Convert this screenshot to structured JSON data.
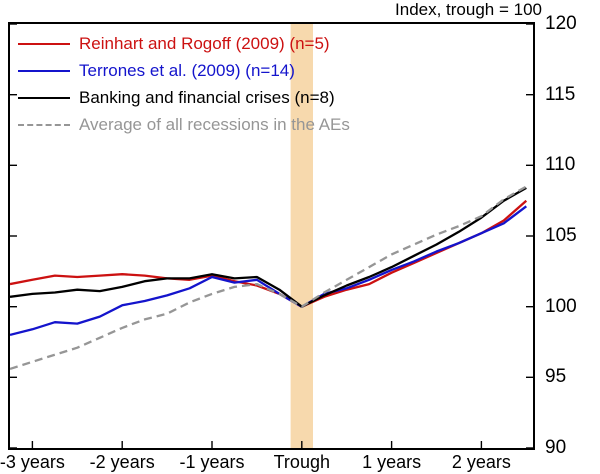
{
  "chart_data": {
    "type": "line",
    "title": "Index, trough = 100",
    "x_unit": "quarters relative to trough",
    "grid": false,
    "legend_position": "top-left",
    "xlim": [
      -13.0,
      10.3
    ],
    "ylim": [
      90,
      120
    ],
    "x": [
      -13,
      -12,
      -11,
      -10,
      -9,
      -8,
      -7,
      -6,
      -5,
      -4,
      -3,
      -2,
      -1,
      0,
      1,
      2,
      3,
      4,
      5,
      6,
      7,
      8,
      9,
      10
    ],
    "series": [
      {
        "name": "Reinhart and Rogoff (2009) (n=5)",
        "color": "#cc1111",
        "dash": "",
        "values": [
          101.6,
          101.9,
          102.2,
          102.1,
          102.2,
          102.3,
          102.2,
          102.0,
          101.9,
          102.2,
          101.8,
          101.5,
          100.9,
          100.0,
          100.7,
          101.2,
          101.6,
          102.4,
          103.1,
          103.8,
          104.5,
          105.2,
          106.1,
          107.5
        ]
      },
      {
        "name": "Terrones et al. (2009) (n=14)",
        "color": "#1414cc",
        "dash": "",
        "values": [
          98.0,
          98.4,
          98.9,
          98.8,
          99.3,
          100.1,
          100.4,
          100.8,
          101.3,
          102.1,
          101.7,
          101.9,
          100.9,
          100.0,
          100.9,
          101.3,
          101.9,
          102.6,
          103.2,
          103.9,
          104.5,
          105.2,
          105.9,
          107.1
        ]
      },
      {
        "name": "Banking and financial crises (n=8)",
        "color": "#000000",
        "dash": "",
        "values": [
          100.7,
          100.9,
          101.0,
          101.2,
          101.1,
          101.4,
          101.8,
          102.0,
          102.0,
          102.3,
          102.0,
          102.1,
          101.2,
          100.0,
          100.8,
          101.5,
          102.1,
          102.8,
          103.6,
          104.4,
          105.3,
          106.3,
          107.5,
          108.4
        ]
      },
      {
        "name": "Average of all recessions in the AEs",
        "color": "#969696",
        "dash": "8,5",
        "values": [
          95.6,
          96.1,
          96.6,
          97.1,
          97.8,
          98.5,
          99.1,
          99.5,
          100.3,
          100.9,
          101.4,
          101.6,
          100.9,
          100.0,
          101.0,
          101.9,
          102.8,
          103.7,
          104.4,
          105.1,
          105.7,
          106.4,
          107.6,
          108.5
        ]
      }
    ],
    "x_ticks": [
      {
        "q": -12,
        "label": "-3 years"
      },
      {
        "q": -8,
        "label": "-2 years"
      },
      {
        "q": -4,
        "label": "-1 years"
      },
      {
        "q": 0,
        "label": "Trough"
      },
      {
        "q": 4,
        "label": "1 years"
      },
      {
        "q": 8,
        "label": "2 years"
      }
    ],
    "y_ticks": [
      90,
      95,
      100,
      105,
      110,
      115,
      120
    ],
    "trough_band": {
      "x0": -0.5,
      "x1": 0.5,
      "color": "#f7d9ad"
    }
  }
}
